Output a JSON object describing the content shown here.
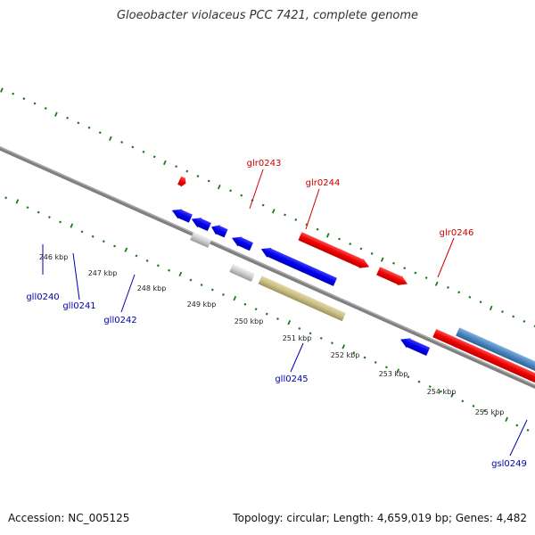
{
  "title": "Gloeobacter violaceus PCC 7421, complete genome",
  "footer": {
    "accession": "Accession: NC_005125",
    "stats": "Topology: circular; Length: 4,659,019 bp; Genes: 4,482"
  },
  "colors": {
    "forward_label": "#cc0000",
    "reverse_label": "#0000aa",
    "tick": "#1a7a1a",
    "backbone": "#808080",
    "red": "#ee0000",
    "blue": "#0000ee",
    "grey": "#cccccc",
    "olive": "#c8bd82",
    "steelblue": "#4a85bf"
  },
  "scale_labels": [
    "246 kbp",
    "247 kbp",
    "248 kbp",
    "249 kbp",
    "250 kbp",
    "251 kbp",
    "252 kbp",
    "253 kbp",
    "254 kbp",
    "255 kbp"
  ],
  "gene_labels": {
    "glr0243": "glr0243",
    "glr0244": "glr0244",
    "glr0246": "glr0246",
    "gll0240": "gll0240",
    "gll0241": "gll0241",
    "gll0242": "gll0242",
    "gll0245": "gll0245",
    "gsl0249": "gsl0249"
  }
}
